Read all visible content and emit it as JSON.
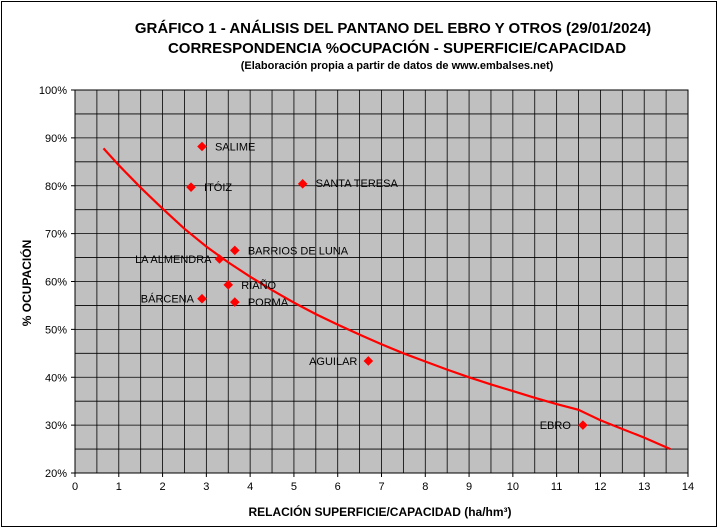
{
  "chart_data": {
    "type": "scatter",
    "title": "GRÁFICO 1 - ANÁLISIS DEL PANTANO DEL EBRO Y OTROS (29/01/2024)",
    "subtitle": "CORRESPONDENCIA %OCUPACIÓN - SUPERFICIE/CAPACIDAD",
    "note": "(Elaboración propia a partir de datos de www.embalses.net)",
    "xlabel": "RELACIÓN SUPERFICIE/CAPACIDAD (ha/hm³)",
    "ylabel": "% OCUPACIÓN",
    "xlim": [
      0,
      14
    ],
    "ylim": [
      20,
      100
    ],
    "x_ticks": [
      "0",
      "1",
      "2",
      "3",
      "4",
      "5",
      "6",
      "7",
      "8",
      "9",
      "10",
      "11",
      "12",
      "13",
      "14"
    ],
    "y_ticks": [
      "20%",
      "30%",
      "40%",
      "50%",
      "60%",
      "70%",
      "80%",
      "90%",
      "100%"
    ],
    "grid": true,
    "points": [
      {
        "label": "SALIME",
        "x": 2.9,
        "y": 88.2
      },
      {
        "label": "ITÓIZ",
        "x": 2.65,
        "y": 79.7
      },
      {
        "label": "SANTA TERESA",
        "x": 5.2,
        "y": 80.4
      },
      {
        "label": "BARRIOS DE LUNA",
        "x": 3.65,
        "y": 66.5
      },
      {
        "label": "LA ALMENDRA",
        "x": 3.3,
        "y": 64.7
      },
      {
        "label": "RIAÑO",
        "x": 3.5,
        "y": 59.3
      },
      {
        "label": "BÁRCENA",
        "x": 2.9,
        "y": 56.4
      },
      {
        "label": "PORMA",
        "x": 3.65,
        "y": 55.7
      },
      {
        "label": "AGUILAR",
        "x": 6.7,
        "y": 43.4
      },
      {
        "label": "EBRO",
        "x": 11.6,
        "y": 30.0
      }
    ],
    "trend": {
      "type": "power",
      "x": [
        0.65,
        1,
        1.5,
        2,
        2.5,
        3,
        3.5,
        4,
        4.5,
        5,
        5.5,
        6,
        6.5,
        7,
        7.5,
        8,
        8.5,
        9,
        9.5,
        10,
        10.5,
        11,
        11.5,
        12,
        12.5,
        13,
        13.6
      ],
      "y": [
        87.8,
        84.3,
        79.6,
        75.2,
        71.0,
        67.3,
        64.0,
        61.0,
        58.2,
        55.6,
        53.2,
        51.0,
        48.9,
        46.9,
        45.0,
        43.3,
        41.6,
        40.0,
        38.5,
        37.1,
        35.7,
        34.4,
        33.2,
        31.0,
        29.2,
        27.4,
        25.0
      ]
    },
    "colors": {
      "marker": "#ff0000",
      "trend": "#ff0000",
      "plot_bg": "#c0c0c0",
      "grid": "#000000"
    }
  }
}
